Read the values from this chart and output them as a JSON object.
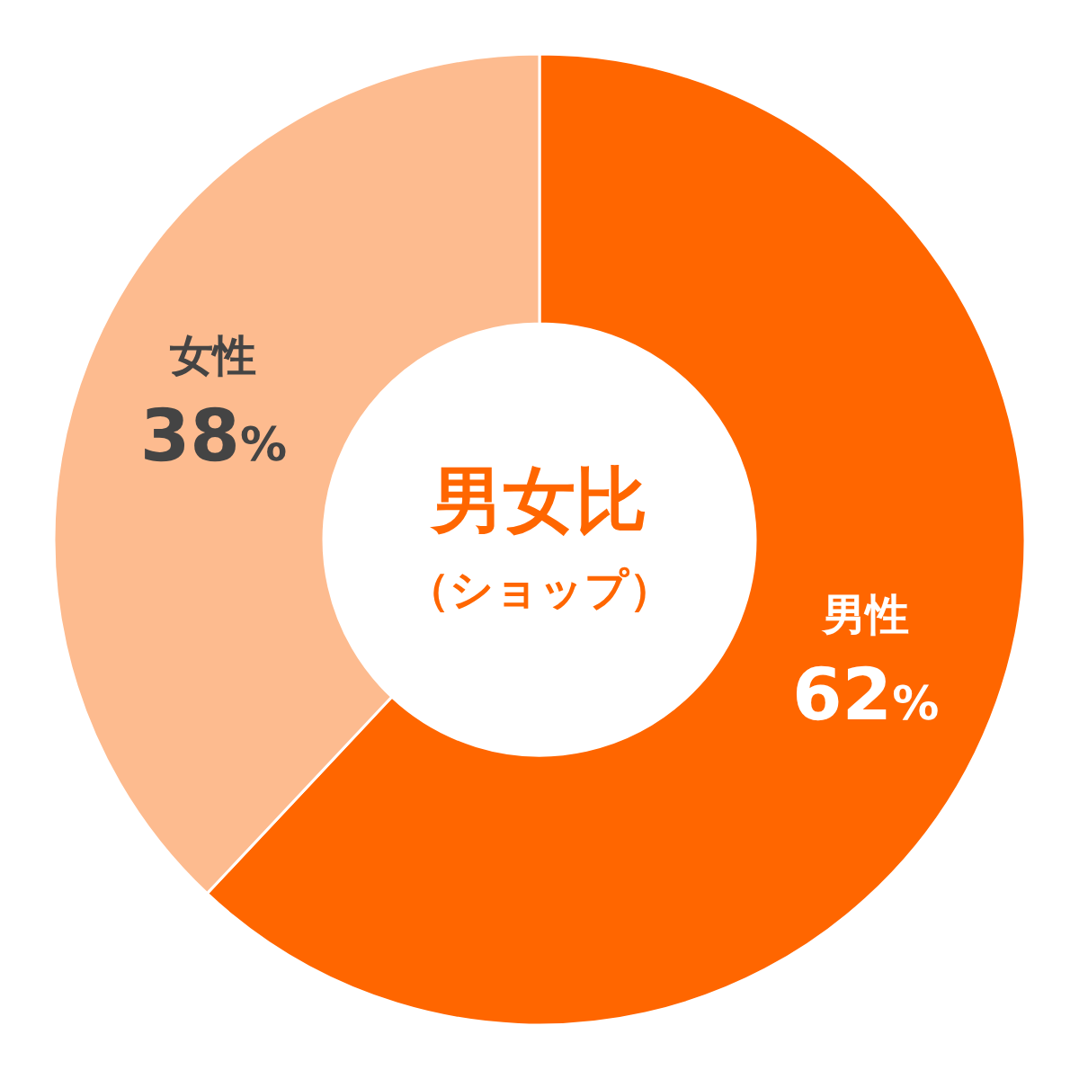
{
  "chart_data": {
    "type": "donut",
    "title": "男女比",
    "subtitle": "（ショップ）",
    "categories": [
      "男性",
      "女性"
    ],
    "values": [
      62,
      38
    ],
    "colors": [
      "#ff6600",
      "#fdbb8f"
    ],
    "value_labels": [
      "62%",
      "38%"
    ]
  }
}
